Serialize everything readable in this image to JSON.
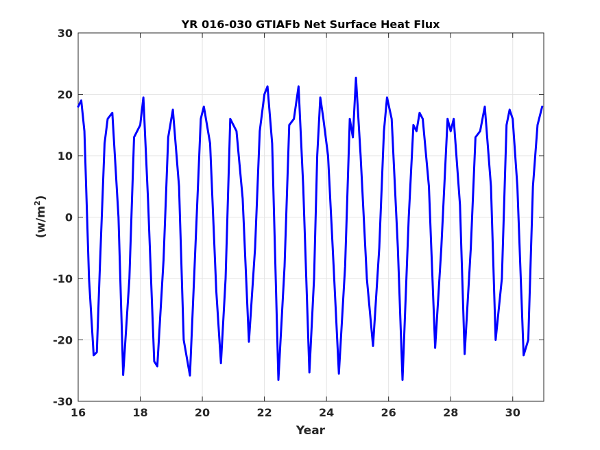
{
  "chart_data": {
    "type": "line",
    "title": "YR 016-030 GTIAFb Net Surface Heat Flux",
    "xlabel": "Year",
    "ylabel": {
      "prefix": "(w/m",
      "superscript": "2",
      "suffix": ")"
    },
    "xlim": [
      16,
      31
    ],
    "ylim": [
      -30,
      30
    ],
    "xticks": [
      16,
      18,
      20,
      22,
      24,
      26,
      28,
      30
    ],
    "yticks": [
      -30,
      -20,
      -10,
      0,
      10,
      20,
      30
    ],
    "grid": true,
    "legend": "none",
    "line_color": "#0000ff",
    "series": [
      {
        "x": [
          16.0,
          16.1,
          16.2,
          16.35,
          16.5,
          16.6,
          16.7,
          16.85,
          16.95,
          17.1,
          17.3,
          17.45,
          17.65,
          17.8,
          18.0,
          18.1,
          18.25,
          18.45,
          18.55,
          18.75,
          18.9,
          19.05,
          19.25,
          19.4,
          19.6,
          19.75,
          19.95,
          20.05,
          20.25,
          20.45,
          20.6,
          20.75,
          20.9,
          21.1,
          21.3,
          21.5,
          21.7,
          21.85,
          22.0,
          22.1,
          22.25,
          22.45,
          22.65,
          22.8,
          22.95,
          23.1,
          23.25,
          23.45,
          23.6,
          23.7,
          23.8,
          23.9,
          24.05,
          24.2,
          24.4,
          24.6,
          24.75,
          24.85,
          24.95,
          25.1,
          25.3,
          25.5,
          25.7,
          25.85,
          25.95,
          26.1,
          26.3,
          26.45,
          26.65,
          26.8,
          26.9,
          27.0,
          27.1,
          27.3,
          27.5,
          27.7,
          27.9,
          28.0,
          28.1,
          28.3,
          28.45,
          28.65,
          28.8,
          28.95,
          29.1,
          29.3,
          29.45,
          29.65,
          29.8,
          29.9,
          30.0,
          30.15,
          30.35,
          30.5,
          30.65,
          30.8,
          30.95
        ],
        "y": [
          18,
          19,
          14,
          -10,
          -22.5,
          -22,
          -8,
          12,
          16,
          17,
          0,
          -25.7,
          -10,
          13,
          15,
          19.5,
          3,
          -23.5,
          -24.3,
          -7,
          13,
          17.5,
          5,
          -20,
          -25.8,
          -8,
          16,
          18,
          12,
          -12,
          -23.8,
          -10,
          16,
          14,
          3,
          -20.3,
          -5,
          14,
          20,
          21.3,
          12,
          -26.5,
          -8,
          15,
          16,
          21.3,
          5,
          -25.3,
          -10,
          10,
          19.5,
          16,
          10,
          -5,
          -25.5,
          -8,
          16,
          13,
          22.7,
          10,
          -10,
          -21,
          -5,
          14,
          19.5,
          16,
          -5,
          -26.5,
          0,
          15,
          14,
          17,
          16,
          5,
          -21.3,
          -5,
          16,
          14,
          16,
          2,
          -22.3,
          -5,
          13,
          14,
          18,
          5,
          -20,
          -10,
          15,
          17.5,
          16,
          5,
          -22.5,
          -20,
          5,
          15,
          18
        ]
      }
    ]
  }
}
